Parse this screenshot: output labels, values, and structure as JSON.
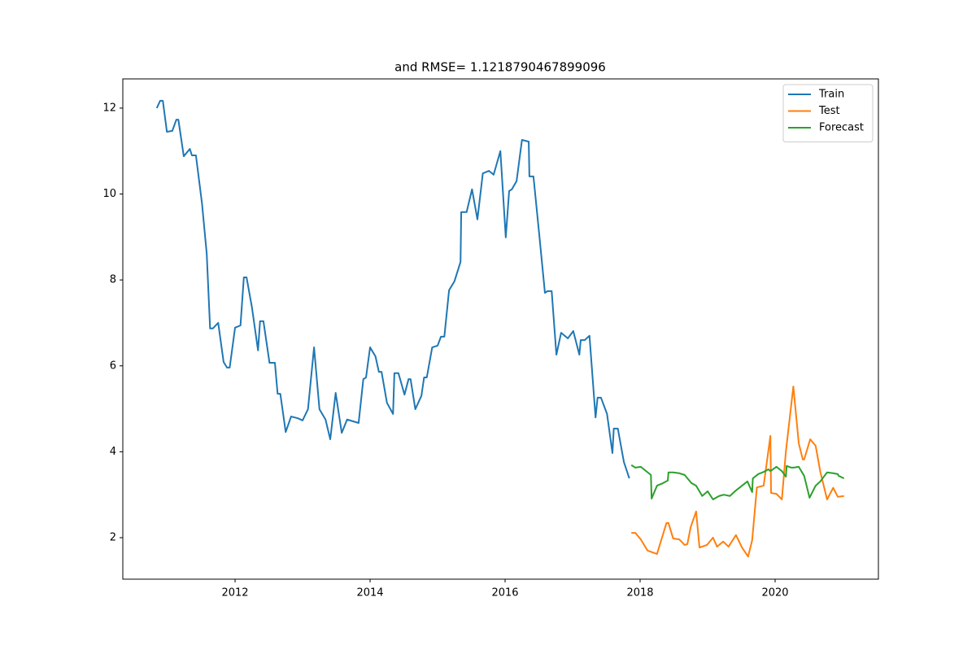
{
  "chart_data": {
    "type": "line",
    "title": "and RMSE= 1.1218790467899096",
    "xlim": [
      2010.337,
      2021.53
    ],
    "xticks": [
      2012,
      2014,
      2016,
      2018,
      2020
    ],
    "ylim": [
      1.034,
      12.68
    ],
    "yticks": [
      2,
      4,
      6,
      8,
      10,
      12
    ],
    "legend": "upper right",
    "series": [
      {
        "name": "Train",
        "color": "#1f77b4",
        "x": [
          2010.84,
          2010.89,
          2010.93,
          2010.99,
          2011.07,
          2011.13,
          2011.16,
          2011.24,
          2011.33,
          2011.36,
          2011.42,
          2011.51,
          2011.58,
          2011.63,
          2011.67,
          2011.75,
          2011.83,
          2011.88,
          2011.92,
          2012.0,
          2012.08,
          2012.13,
          2012.17,
          2012.25,
          2012.34,
          2012.37,
          2012.42,
          2012.51,
          2012.59,
          2012.63,
          2012.67,
          2012.75,
          2012.83,
          2012.93,
          2013.0,
          2013.08,
          2013.17,
          2013.25,
          2013.34,
          2013.41,
          2013.49,
          2013.58,
          2013.66,
          2013.83,
          2013.9,
          2013.94,
          2014.0,
          2014.08,
          2014.13,
          2014.17,
          2014.25,
          2014.34,
          2014.36,
          2014.42,
          2014.51,
          2014.57,
          2014.6,
          2014.67,
          2014.76,
          2014.8,
          2014.84,
          2014.92,
          2015.0,
          2015.05,
          2015.1,
          2015.17,
          2015.25,
          2015.34,
          2015.35,
          2015.43,
          2015.51,
          2015.59,
          2015.67,
          2015.76,
          2015.83,
          2015.93,
          2016.01,
          2016.06,
          2016.1,
          2016.17,
          2016.25,
          2016.35,
          2016.36,
          2016.42,
          2016.51,
          2016.59,
          2016.63,
          2016.69,
          2016.76,
          2016.83,
          2016.93,
          2017.01,
          2017.1,
          2017.12,
          2017.18,
          2017.25,
          2017.34,
          2017.37,
          2017.42,
          2017.51,
          2017.59,
          2017.61,
          2017.67,
          2017.76,
          2017.84
        ],
        "values": [
          12.0,
          12.17,
          12.17,
          11.45,
          11.47,
          11.73,
          11.73,
          10.88,
          11.05,
          10.9,
          10.9,
          9.78,
          8.61,
          6.87,
          6.87,
          7.0,
          6.09,
          5.96,
          5.96,
          6.89,
          6.94,
          8.06,
          8.06,
          7.36,
          6.36,
          7.04,
          7.04,
          6.07,
          6.07,
          5.35,
          5.35,
          4.46,
          4.82,
          4.78,
          4.73,
          4.99,
          6.43,
          4.99,
          4.75,
          4.29,
          5.37,
          4.44,
          4.75,
          4.67,
          5.69,
          5.73,
          6.43,
          6.22,
          5.86,
          5.86,
          5.14,
          4.88,
          5.83,
          5.83,
          5.33,
          5.69,
          5.69,
          4.99,
          5.3,
          5.73,
          5.73,
          6.43,
          6.47,
          6.68,
          6.68,
          7.76,
          7.97,
          8.42,
          9.58,
          9.58,
          10.11,
          9.41,
          10.48,
          10.54,
          10.45,
          11.0,
          8.99,
          10.07,
          10.11,
          10.3,
          11.26,
          11.22,
          10.41,
          10.41,
          8.99,
          7.7,
          7.74,
          7.74,
          6.26,
          6.77,
          6.64,
          6.81,
          6.26,
          6.6,
          6.6,
          6.7,
          4.8,
          5.26,
          5.26,
          4.88,
          3.97,
          4.54,
          4.54,
          3.76,
          3.38
        ]
      },
      {
        "name": "Test",
        "color": "#ff7f0e",
        "x": [
          2017.87,
          2017.93,
          2018.01,
          2018.11,
          2018.18,
          2018.25,
          2018.34,
          2018.39,
          2018.42,
          2018.49,
          2018.58,
          2018.66,
          2018.7,
          2018.75,
          2018.83,
          2018.88,
          2018.99,
          2019.08,
          2019.14,
          2019.23,
          2019.31,
          2019.42,
          2019.51,
          2019.6,
          2019.66,
          2019.73,
          2019.83,
          2019.93,
          2019.94,
          2020.02,
          2020.1,
          2020.16,
          2020.27,
          2020.35,
          2020.41,
          2020.43,
          2020.52,
          2020.6,
          2020.67,
          2020.77,
          2020.86,
          2020.93,
          2021.02
        ],
        "values": [
          2.11,
          2.11,
          1.96,
          1.7,
          1.66,
          1.62,
          2.08,
          2.34,
          2.34,
          1.98,
          1.96,
          1.83,
          1.85,
          2.25,
          2.61,
          1.77,
          1.83,
          2.0,
          1.79,
          1.91,
          1.79,
          2.06,
          1.77,
          1.56,
          1.94,
          3.17,
          3.21,
          4.37,
          3.04,
          3.02,
          2.89,
          4.01,
          5.52,
          4.2,
          3.82,
          3.82,
          4.29,
          4.14,
          3.53,
          2.89,
          3.16,
          2.95,
          2.97
        ]
      },
      {
        "name": "Forecast",
        "color": "#2ca02c",
        "x": [
          2017.87,
          2017.93,
          2018.01,
          2018.16,
          2018.17,
          2018.25,
          2018.34,
          2018.41,
          2018.42,
          2018.49,
          2018.58,
          2018.66,
          2018.76,
          2018.83,
          2018.92,
          2019.0,
          2019.08,
          2019.17,
          2019.24,
          2019.33,
          2019.42,
          2019.51,
          2019.59,
          2019.66,
          2019.67,
          2019.75,
          2019.83,
          2019.9,
          2019.93,
          2020.02,
          2020.1,
          2020.16,
          2020.17,
          2020.24,
          2020.27,
          2020.35,
          2020.43,
          2020.51,
          2020.6,
          2020.67,
          2020.77,
          2020.86,
          2020.93,
          2020.94,
          2021.02
        ],
        "values": [
          3.69,
          3.63,
          3.65,
          3.46,
          2.91,
          3.21,
          3.27,
          3.33,
          3.52,
          3.52,
          3.5,
          3.46,
          3.27,
          3.21,
          2.97,
          3.08,
          2.89,
          2.97,
          3.0,
          2.97,
          3.1,
          3.21,
          3.31,
          3.06,
          3.38,
          3.48,
          3.53,
          3.59,
          3.55,
          3.65,
          3.55,
          3.42,
          3.67,
          3.63,
          3.63,
          3.65,
          3.44,
          2.93,
          3.21,
          3.31,
          3.52,
          3.5,
          3.48,
          3.44,
          3.38
        ]
      }
    ]
  }
}
